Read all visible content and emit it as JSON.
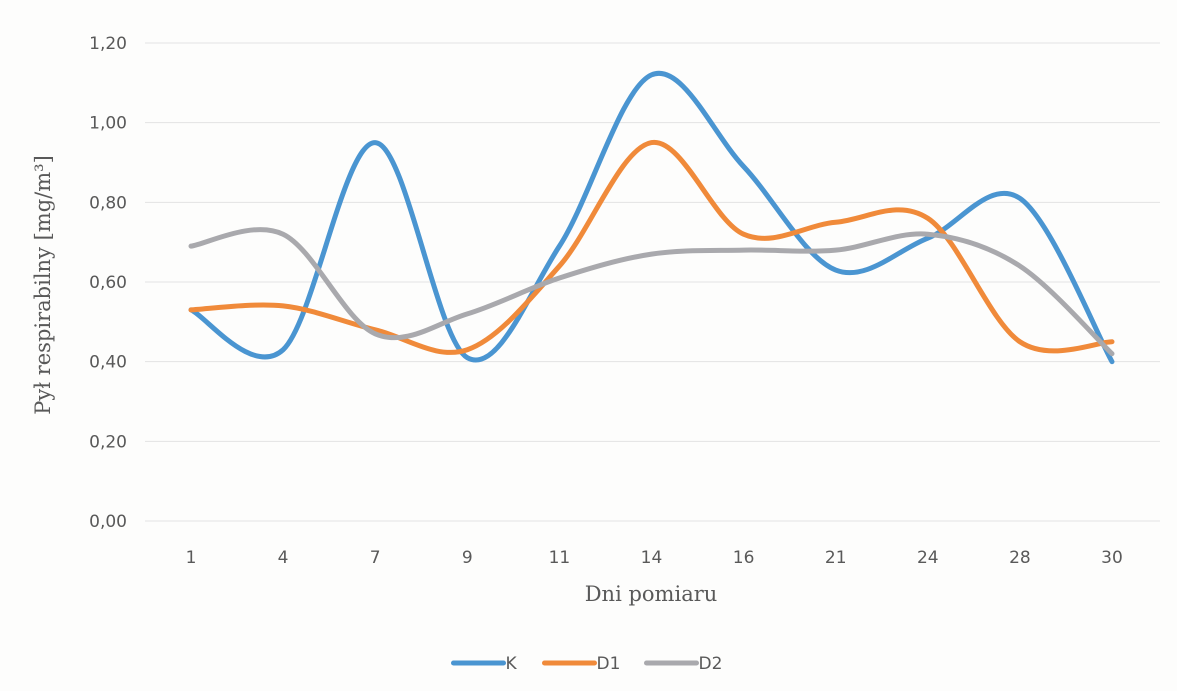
{
  "chart_data": {
    "type": "line",
    "smooth": true,
    "title": "",
    "xlabel": "Dni pomiaru",
    "ylabel": "Pył respirabilny [mg/m³]",
    "categories": [
      "1",
      "4",
      "7",
      "9",
      "11",
      "14",
      "16",
      "21",
      "24",
      "28",
      "30"
    ],
    "ylim": [
      0,
      1.2
    ],
    "yticks": [
      "0,00",
      "0,20",
      "0,40",
      "0,60",
      "0,80",
      "1,00",
      "1,20"
    ],
    "grid": true,
    "legend_position": "bottom",
    "series": [
      {
        "name": "K",
        "color": "#4a95d1",
        "values": [
          0.53,
          0.43,
          0.95,
          0.41,
          0.69,
          1.12,
          0.89,
          0.63,
          0.71,
          0.81,
          0.4
        ]
      },
      {
        "name": "D1",
        "color": "#f08a3a",
        "values": [
          0.53,
          0.54,
          0.48,
          0.43,
          0.64,
          0.95,
          0.72,
          0.75,
          0.76,
          0.45,
          0.45
        ]
      },
      {
        "name": "D2",
        "color": "#a9a9ad",
        "values": [
          0.69,
          0.72,
          0.47,
          0.52,
          0.61,
          0.67,
          0.68,
          0.68,
          0.72,
          0.64,
          0.42
        ]
      }
    ]
  }
}
